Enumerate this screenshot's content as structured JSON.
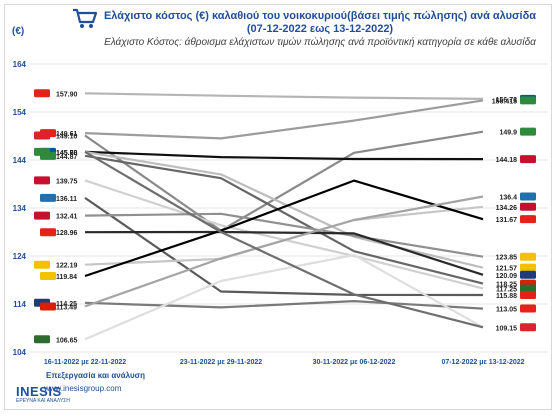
{
  "header": {
    "title_line1": "Ελάχιστο κόστος (€) καλαθιού του νοικοκυριού(βάσει τιμής πώλησης) ανά αλυσίδα",
    "title_line2": "(07-12-2022 εως 13-12-2022)",
    "subtitle": "Ελάχιστο Κόστος: άθροισμα ελάχιστων τιμών πώλησης ανά προϊόντική κατηγορία σε κάθε αλυσίδα",
    "unit": "(€)"
  },
  "footer": {
    "processing": "Επεξεργασία και ανάλυση",
    "brand": "INESIS",
    "url": "www.inesisgroup.com",
    "brand_sub": "ΕΡΕΥΝΑ ΚΑΙ ΑΝΑΛΥΣΗ"
  },
  "chart_data": {
    "type": "line",
    "categories": [
      "16-11-2022 με 22-11-2022",
      "23-11-2022 με 29-11-2022",
      "30-11-2022 με 06-12-2022",
      "07-12-2022 με 13-12-2022"
    ],
    "ylim": [
      104,
      164
    ],
    "yticks": [
      104,
      114,
      124,
      134,
      144,
      154,
      164
    ],
    "grid": true,
    "series": [
      {
        "color": "#b5b5b5",
        "values": [
          157.9,
          157.4,
          157.0,
          156.73
        ]
      },
      {
        "color": "#9c9c9c",
        "values": [
          149.61,
          148.5,
          152.2,
          156.415
        ]
      },
      {
        "color": "#8a8a8a",
        "values": [
          149.1,
          129.3,
          145.5,
          149.9
        ]
      },
      {
        "color": "#101010",
        "values": [
          145.7,
          144.6,
          144.2,
          144.18
        ]
      },
      {
        "color": "#bdbdbd",
        "values": [
          145.68,
          141.0,
          128.0,
          121.57
        ]
      },
      {
        "color": "#666666",
        "values": [
          144.87,
          140.2,
          125.0,
          118.25
        ]
      },
      {
        "color": "#d0d0d0",
        "values": [
          139.75,
          130.4,
          124.0,
          117.25
        ]
      },
      {
        "color": "#5a5a5a",
        "values": [
          136.11,
          116.6,
          115.9,
          115.88
        ]
      },
      {
        "color": "#909090",
        "values": [
          132.41,
          132.8,
          128.2,
          123.85
        ]
      },
      {
        "color": "#c6c6c6",
        "values": [
          122.19,
          123.4,
          131.5,
          134.26
        ]
      },
      {
        "color": "#2a2a2a",
        "values": [
          128.96,
          129.0,
          128.7,
          120.09
        ]
      },
      {
        "color": "#000000",
        "values": [
          119.84,
          129.3,
          139.7,
          131.67
        ]
      },
      {
        "color": "#7a7a7a",
        "values": [
          114.25,
          113.3,
          114.6,
          113.05
        ]
      },
      {
        "color": "#a4a4a4",
        "values": [
          113.49,
          123.5,
          131.5,
          136.4
        ]
      },
      {
        "color": "#dedede",
        "values": [
          106.65,
          118.8,
          124.2,
          109.15
        ]
      },
      {
        "color": "#6e6e6e",
        "values": [
          145.7,
          129.0,
          116.0,
          109.15
        ]
      }
    ],
    "left_labels": [
      "157.90",
      "149.61",
      "149.10",
      "145.70",
      "145.68",
      "144.87",
      "139.75",
      "136.11",
      "132.41",
      "128.96",
      "122.19",
      "119.84",
      "114.25",
      "113.49",
      "106.65"
    ],
    "left_label_values": [
      157.9,
      149.61,
      149.1,
      145.7,
      145.68,
      144.87,
      139.75,
      136.11,
      132.41,
      128.96,
      122.19,
      119.84,
      114.25,
      113.49,
      106.65
    ],
    "right_labels": [
      "156.73",
      "156.415",
      "149.9",
      "144.18",
      "136.4",
      "134.26",
      "131.67",
      "123.85",
      "121.57",
      "120.09",
      "118.25",
      "117.25",
      "115.88",
      "113.05",
      "109.15"
    ],
    "right_label_values": [
      156.73,
      156.415,
      149.9,
      144.18,
      136.4,
      134.26,
      131.67,
      123.85,
      121.57,
      120.09,
      118.25,
      117.25,
      115.88,
      113.05,
      109.15
    ]
  }
}
